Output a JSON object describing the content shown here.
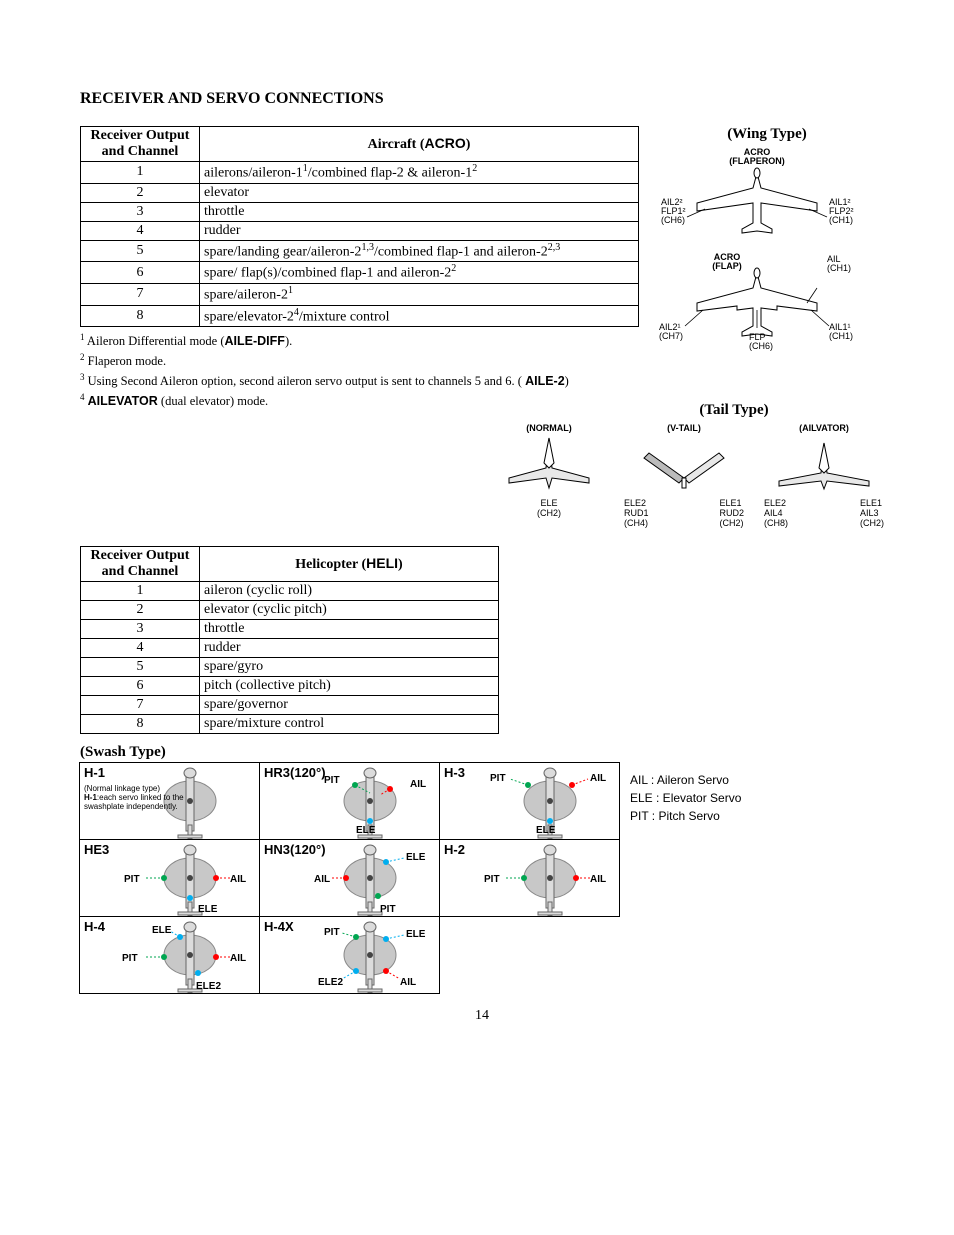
{
  "title": "RECEIVER AND SERVO CONNECTIONS",
  "wing_title": "(Wing Type)",
  "tail_title": "(Tail Type)",
  "swash_title": "(Swash Type)",
  "table1": {
    "head_left": "Receiver Output and Channel",
    "head_right_pre": "Aircraft (",
    "head_right_bold": "ACRO",
    "head_right_post": ")",
    "rows": [
      {
        "ch": "1",
        "desc_html": "ailerons/aileron-1<sup>1</sup>/combined flap-2 & aileron-1<sup>2</sup>"
      },
      {
        "ch": "2",
        "desc_html": "elevator"
      },
      {
        "ch": "3",
        "desc_html": "throttle"
      },
      {
        "ch": "4",
        "desc_html": "rudder"
      },
      {
        "ch": "5",
        "desc_html": "spare/landing gear/aileron-2<sup>1,3</sup>/combined flap-1 and aileron-2<sup>2,3</sup>"
      },
      {
        "ch": "6",
        "desc_html": "spare/ flap(s)/combined flap-1 and aileron-2<sup>2</sup>"
      },
      {
        "ch": "7",
        "desc_html": "spare/aileron-2<sup>1</sup>"
      },
      {
        "ch": "8",
        "desc_html": "spare/elevator-2<sup>4</sup>/mixture control"
      }
    ]
  },
  "footnotes": [
    "<sup>1</sup> Aileron Differential mode (<b class='sans'>AILE-DIFF</b>).",
    "<sup>2</sup> Flaperon mode.",
    "<sup>3</sup> Using Second Aileron option, second aileron servo output is sent to channels 5 and 6. ( <b class='sans'>AILE-2</b>)",
    "<sup>4</sup> <b class='sans'>AILEVATOR</b> (dual elevator) mode."
  ],
  "table2": {
    "head_left": "Receiver Output and Channel",
    "head_right_pre": "Helicopter (",
    "head_right_bold": "HELI",
    "head_right_post": ")",
    "rows": [
      {
        "ch": "1",
        "desc": "aileron (cyclic roll)"
      },
      {
        "ch": "2",
        "desc": "elevator (cyclic pitch)"
      },
      {
        "ch": "3",
        "desc": "throttle"
      },
      {
        "ch": "4",
        "desc": "rudder"
      },
      {
        "ch": "5",
        "desc": "spare/gyro"
      },
      {
        "ch": "6",
        "desc": "pitch (collective pitch)"
      },
      {
        "ch": "7",
        "desc": "spare/governor"
      },
      {
        "ch": "8",
        "desc": "spare/mixture control"
      }
    ]
  },
  "wing": {
    "d1_title": "ACRO\n(FLAPERON)",
    "d1_left": "AIL2²\nFLP1²\n(CH6)",
    "d1_right": "AIL1²\nFLP2²\n(CH1)",
    "d2_title": "ACRO\n(FLAP)",
    "d2_tr": "AIL\n(CH1)",
    "d2_bl": "AIL2¹\n(CH7)",
    "d2_bm": "FLP\n(CH6)",
    "d2_br": "AIL1¹\n(CH1)"
  },
  "tail": {
    "normal_t": "(NORMAL)",
    "normal_b": "ELE\n(CH2)",
    "vtail_t": "(V-TAIL)",
    "vtail_l": "ELE2\nRUD1\n(CH4)",
    "vtail_r": "ELE1\nRUD2\n(CH2)",
    "ailv_t": "(AILVATOR)",
    "ailv_l": "ELE2\nAIL4\n(CH8)",
    "ailv_r": "ELE1\nAIL3\n(CH2)"
  },
  "swash": {
    "cells": [
      "H-1",
      "HR3(120°)",
      "H-3",
      "HE3",
      "HN3(120°)",
      "H-2",
      "H-4",
      "H-4X"
    ],
    "h1_note": "(Normal linkage type)\nH-1:each servo linked to the swashplate independently.",
    "labels": {
      "PIT": "PIT",
      "AIL": "AIL",
      "ELE": "ELE",
      "ELE2": "ELE2"
    },
    "legend": [
      "AIL : Aileron Servo",
      "ELE : Elevator Servo",
      "PIT : Pitch Servo"
    ]
  },
  "colors": {
    "red": "#ff0000",
    "blue": "#00aeef",
    "green": "#00a651",
    "grey": "#c8c8c8"
  },
  "pagenum": "14"
}
